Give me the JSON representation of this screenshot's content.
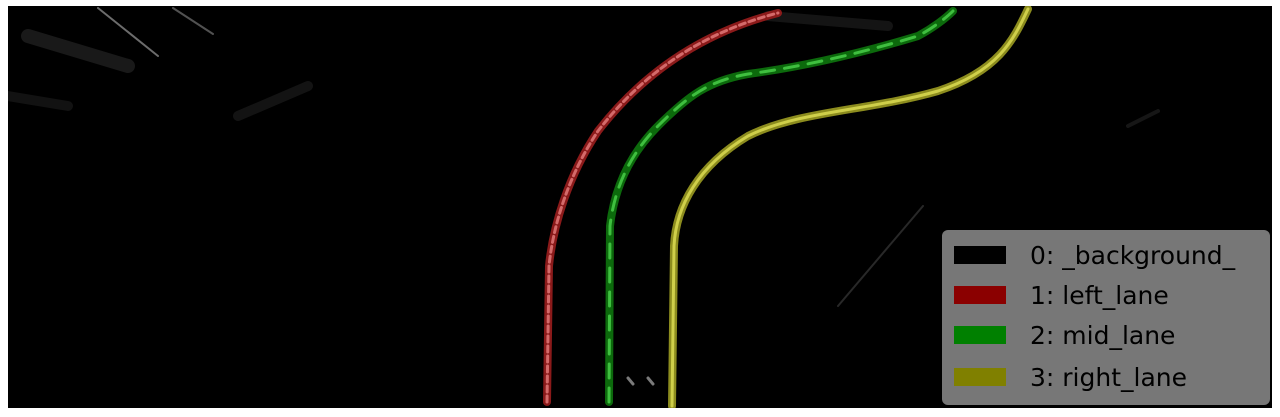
{
  "legend": {
    "items": [
      {
        "label": "0: _background_",
        "color": "#000000"
      },
      {
        "label": "1: left_lane",
        "color": "#8b0000"
      },
      {
        "label": "2: mid_lane",
        "color": "#008000"
      },
      {
        "label": "3: right_lane",
        "color": "#808000"
      }
    ]
  },
  "lanes": [
    {
      "class": "left_lane",
      "color": "#b84d4d"
    },
    {
      "class": "mid_lane",
      "color": "#1c8a1c"
    },
    {
      "class": "right_lane",
      "color": "#b5b535"
    }
  ]
}
